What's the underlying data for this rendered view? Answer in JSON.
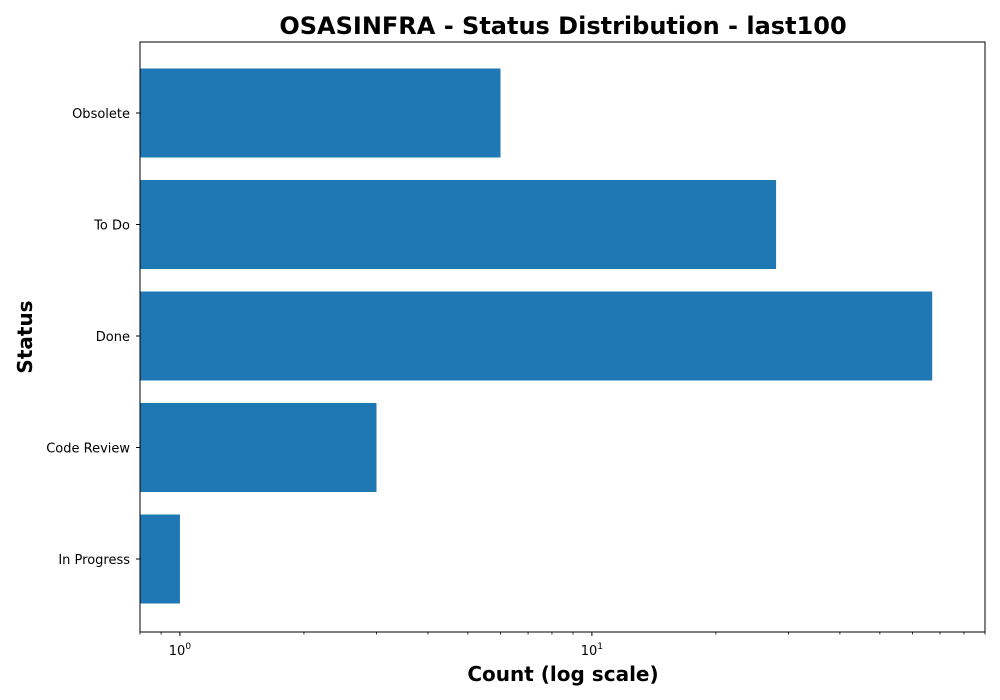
{
  "chart_data": {
    "type": "bar",
    "orientation": "horizontal",
    "title": "OSASINFRA - Status Distribution - last100",
    "xlabel": "Count (log scale)",
    "ylabel": "Status",
    "x_scale": "log",
    "xlim": [
      0.8,
      90
    ],
    "x_ticks": [
      {
        "value": 1,
        "base": "10",
        "exponent": "0"
      },
      {
        "value": 10,
        "base": "10",
        "exponent": "1"
      }
    ],
    "categories": [
      "Obsolete",
      "To Do",
      "Done",
      "Code Review",
      "In Progress"
    ],
    "values": [
      6,
      28,
      67,
      3,
      1
    ],
    "bar_color": "#1f77b4",
    "grid": false,
    "legend": "none"
  }
}
